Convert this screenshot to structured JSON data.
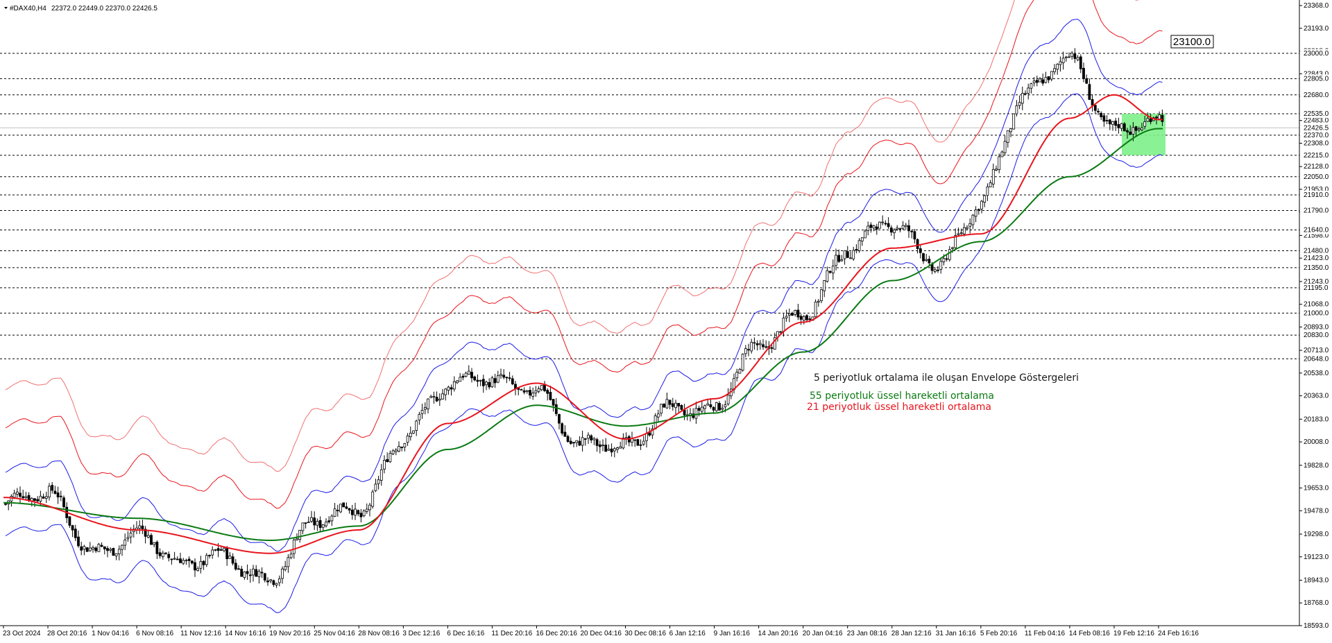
{
  "header": {
    "symbol_label": "#DAX40,H4",
    "ohlc_text": "22372.0 22449.0 22370.0 22426.5"
  },
  "colors": {
    "bg": "#ffffff",
    "candle": "#000000",
    "grid": "#000000",
    "ema55": "#0a7a12",
    "ema21": "#e8141c",
    "envelope_inner": "#1a1ae6",
    "envelope_mid": "#e8141c",
    "envelope_outer": "#f07070",
    "highlight_box": "#7ef08a",
    "current_price_line": "#c0c0c0"
  },
  "annotations": {
    "envelope_title": "5 periyotluk ortalama ile oluşan Envelope Göstergeleri",
    "ema55_label": "55 periyotluk üssel hareketli ortalama",
    "ema21_label": "21 periyotluk üssel hareketli ortalama",
    "level_box_label": "23100.0"
  },
  "chart_data": {
    "type": "candlestick",
    "symbol": "#DAX40",
    "timeframe": "H4",
    "ylim": [
      18593,
      23368
    ],
    "price_axis_ticks": [
      "23368.0",
      "23193.0",
      "23018.0",
      "22843.0",
      "22668.0",
      "22483.0",
      "22308.0",
      "22128.0",
      "21953.0",
      "21778.0",
      "21598.0",
      "21423.0",
      "21243.0",
      "21068.0",
      "20893.0",
      "20713.0",
      "20538.0",
      "20363.0",
      "20183.0",
      "20008.0",
      "19828.0",
      "19653.0",
      "19478.0",
      "19298.0",
      "19123.0",
      "18943.0",
      "18768.0",
      "18593.0"
    ],
    "horizontal_levels": [
      23000.0,
      22805.0,
      22680.0,
      22535.0,
      22370.0,
      22215.0,
      22050.0,
      21910.0,
      21790.0,
      21640.0,
      21480.0,
      21350.0,
      21195.0,
      21000.0,
      20830.0,
      20648.0
    ],
    "current_price": 22426.5,
    "level_box": 23100.0,
    "time_axis_labels": [
      "23 Oct 2024",
      "28 Oct 20:16",
      "1 Nov 04:16",
      "6 Nov 08:16",
      "11 Nov 12:16",
      "14 Nov 16:16",
      "19 Nov 20:16",
      "25 Nov 04:16",
      "28 Nov 08:16",
      "3 Dec 12:16",
      "6 Dec 16:16",
      "11 Dec 20:16",
      "16 Dec 20:16",
      "20 Dec 04:16",
      "30 Dec 08:16",
      "6 Jan 12:16",
      "9 Jan 16:16",
      "14 Jan 20:16",
      "20 Jan 04:16",
      "23 Jan 08:16",
      "28 Jan 12:16",
      "31 Jan 16:16",
      "5 Feb 20:16",
      "11 Feb 04:16",
      "14 Feb 08:16",
      "19 Feb 12:16",
      "24 Feb 16:16"
    ],
    "price_path_keypoints": [
      {
        "t": "23 Oct 2024",
        "price": 19530
      },
      {
        "t": "28 Oct 20:16",
        "price": 19560
      },
      {
        "t": "1 Nov 04:16",
        "price": 19200
      },
      {
        "t": "6 Nov 08:16",
        "price": 19330
      },
      {
        "t": "11 Nov 12:16",
        "price": 19000
      },
      {
        "t": "14 Nov 16:16",
        "price": 19150
      },
      {
        "t": "19 Nov 20:16",
        "price": 18990
      },
      {
        "t": "25 Nov 04:16",
        "price": 19350
      },
      {
        "t": "28 Nov 08:16",
        "price": 19480
      },
      {
        "t": "3 Dec 12:16",
        "price": 20100
      },
      {
        "t": "6 Dec 16:16",
        "price": 20400
      },
      {
        "t": "11 Dec 20:16",
        "price": 20470
      },
      {
        "t": "16 Dec 20:16",
        "price": 20470
      },
      {
        "t": "20 Dec 04:16",
        "price": 19950
      },
      {
        "t": "30 Dec 08:16",
        "price": 19930
      },
      {
        "t": "6 Jan 12:16",
        "price": 20330
      },
      {
        "t": "9 Jan 16:16",
        "price": 20250
      },
      {
        "t": "14 Jan 20:16",
        "price": 20700
      },
      {
        "t": "20 Jan 04:16",
        "price": 21050
      },
      {
        "t": "23 Jan 08:16",
        "price": 21500
      },
      {
        "t": "28 Jan 12:16",
        "price": 21640
      },
      {
        "t": "31 Jan 16:16",
        "price": 21400
      },
      {
        "t": "5 Feb 20:16",
        "price": 21880
      },
      {
        "t": "11 Feb 04:16",
        "price": 22620
      },
      {
        "t": "14 Feb 08:16",
        "price": 22990
      },
      {
        "t": "19 Feb 12:16",
        "price": 22450
      },
      {
        "t": "24 Feb 16:16",
        "price": 22426.5
      }
    ],
    "ema55_keypoints": [
      {
        "t": "23 Oct 2024",
        "price": 19540
      },
      {
        "t": "6 Nov 08:16",
        "price": 19420
      },
      {
        "t": "19 Nov 20:16",
        "price": 19250
      },
      {
        "t": "28 Nov 08:16",
        "price": 19360
      },
      {
        "t": "6 Dec 16:16",
        "price": 19950
      },
      {
        "t": "16 Dec 20:16",
        "price": 20290
      },
      {
        "t": "30 Dec 08:16",
        "price": 20130
      },
      {
        "t": "9 Jan 16:16",
        "price": 20230
      },
      {
        "t": "20 Jan 04:16",
        "price": 20700
      },
      {
        "t": "28 Jan 12:16",
        "price": 21250
      },
      {
        "t": "5 Feb 20:16",
        "price": 21550
      },
      {
        "t": "14 Feb 08:16",
        "price": 22050
      },
      {
        "t": "24 Feb 16:16",
        "price": 22420
      }
    ],
    "ema21_keypoints": [
      {
        "t": "23 Oct 2024",
        "price": 19580
      },
      {
        "t": "6 Nov 08:16",
        "price": 19330
      },
      {
        "t": "19 Nov 20:16",
        "price": 19150
      },
      {
        "t": "28 Nov 08:16",
        "price": 19330
      },
      {
        "t": "6 Dec 16:16",
        "price": 20150
      },
      {
        "t": "16 Dec 20:16",
        "price": 20460
      },
      {
        "t": "30 Dec 08:16",
        "price": 20030
      },
      {
        "t": "9 Jan 16:16",
        "price": 20340
      },
      {
        "t": "20 Jan 04:16",
        "price": 20930
      },
      {
        "t": "28 Jan 12:16",
        "price": 21500
      },
      {
        "t": "5 Feb 20:16",
        "price": 21610
      },
      {
        "t": "14 Feb 08:16",
        "price": 22500
      },
      {
        "t": "19 Feb 12:16",
        "price": 22680
      },
      {
        "t": "24 Feb 16:16",
        "price": 22490
      }
    ],
    "series": [
      {
        "name": "5 periyotluk ortalama ile oluşan Envelope Göstergeleri"
      },
      {
        "name": "55 periyotluk üssel hareketli ortalama"
      },
      {
        "name": "21 periyotluk üssel hareketli ortalama"
      }
    ],
    "highlight_range": [
      22215.0,
      22535.0
    ],
    "grid": false,
    "legend": "none"
  }
}
